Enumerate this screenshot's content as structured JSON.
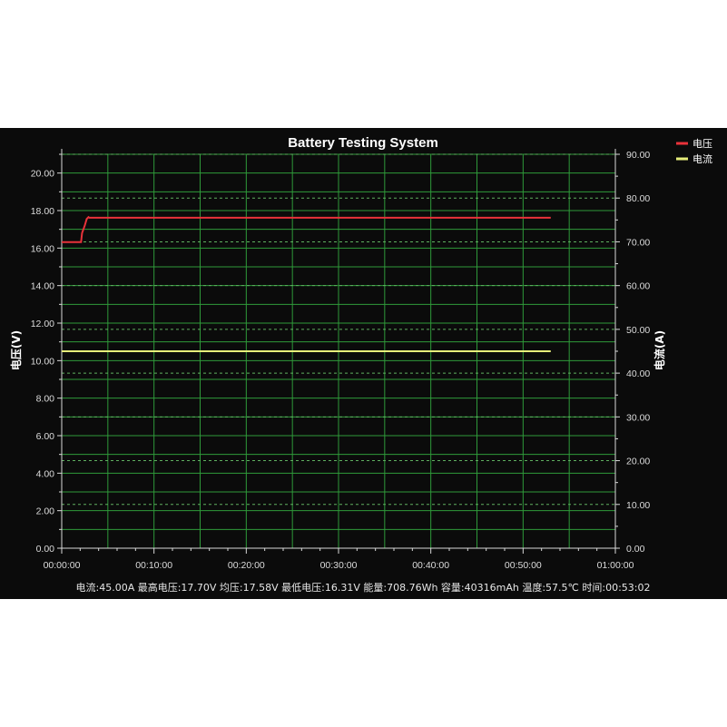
{
  "chart_data": {
    "type": "line",
    "title": "Battery Testing System",
    "ylabel": "电压(V)",
    "y2label": "电流(A)",
    "ylim": [
      0,
      21
    ],
    "y2lim": [
      0,
      90
    ],
    "xlim_minutes": [
      0,
      60
    ],
    "x_tick_labels": [
      "00:00:00",
      "00:10:00",
      "00:20:00",
      "00:30:00",
      "00:40:00",
      "00:50:00",
      "01:00:00"
    ],
    "y_ticks": [
      0,
      2,
      4,
      6,
      8,
      10,
      12,
      14,
      16,
      18,
      20
    ],
    "y2_ticks": [
      0,
      10,
      20,
      30,
      40,
      50,
      60,
      70,
      80,
      90
    ],
    "grid": true,
    "legend_position": "top-right",
    "series": [
      {
        "name": "电压",
        "axis": "left",
        "color": "#e8323a",
        "x_minutes": [
          0,
          2.1,
          2.2,
          2.5,
          2.7,
          2.9,
          3.0,
          10,
          20,
          30,
          40,
          50,
          53.0
        ],
        "y": [
          16.32,
          16.32,
          16.8,
          17.2,
          17.55,
          17.65,
          17.62,
          17.62,
          17.62,
          17.62,
          17.62,
          17.62,
          17.62
        ]
      },
      {
        "name": "电流",
        "axis": "right",
        "color": "#e6ee7a",
        "x_minutes": [
          0,
          53.0
        ],
        "y": [
          45.0,
          45.0
        ]
      }
    ]
  },
  "footer": {
    "text": "电流:45.00A 最高电压:17.70V 均压:17.58V 最低电压:16.31V 能量:708.76Wh 容量:40316mAh 温度:57.5℃ 时间:00:53:02"
  }
}
